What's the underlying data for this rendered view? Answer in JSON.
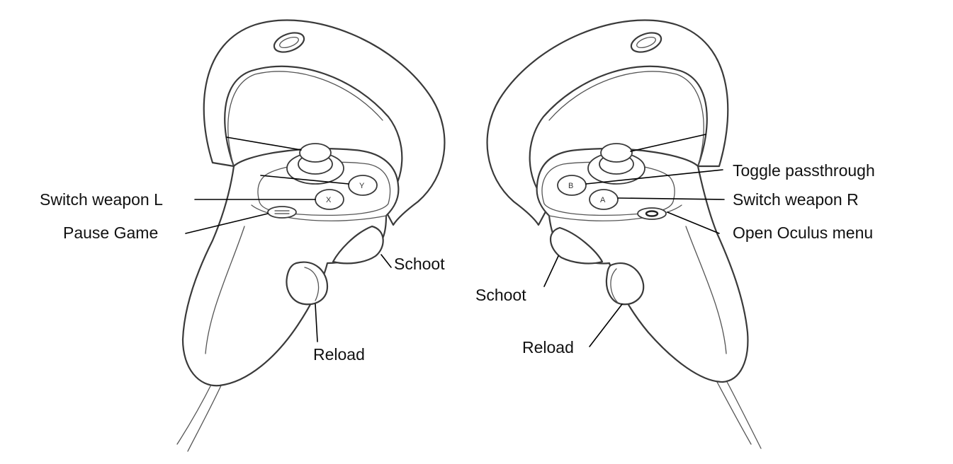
{
  "left_controller": {
    "labels": {
      "switch_weapon": "Switch weapon L",
      "pause_game": "Pause Game",
      "shoot": "Schoot",
      "reload": "Reload"
    },
    "buttons": {
      "top_face": "Y",
      "bottom_face": "X"
    }
  },
  "right_controller": {
    "labels": {
      "toggle_passthrough": "Toggle passthrough",
      "switch_weapon": "Switch weapon R",
      "open_menu": "Open Oculus menu",
      "shoot": "Schoot",
      "reload": "Reload"
    },
    "buttons": {
      "top_face": "B",
      "bottom_face": "A"
    }
  },
  "colors": {
    "line": "#3a3a3a",
    "text": "#111111",
    "background": "#ffffff"
  }
}
